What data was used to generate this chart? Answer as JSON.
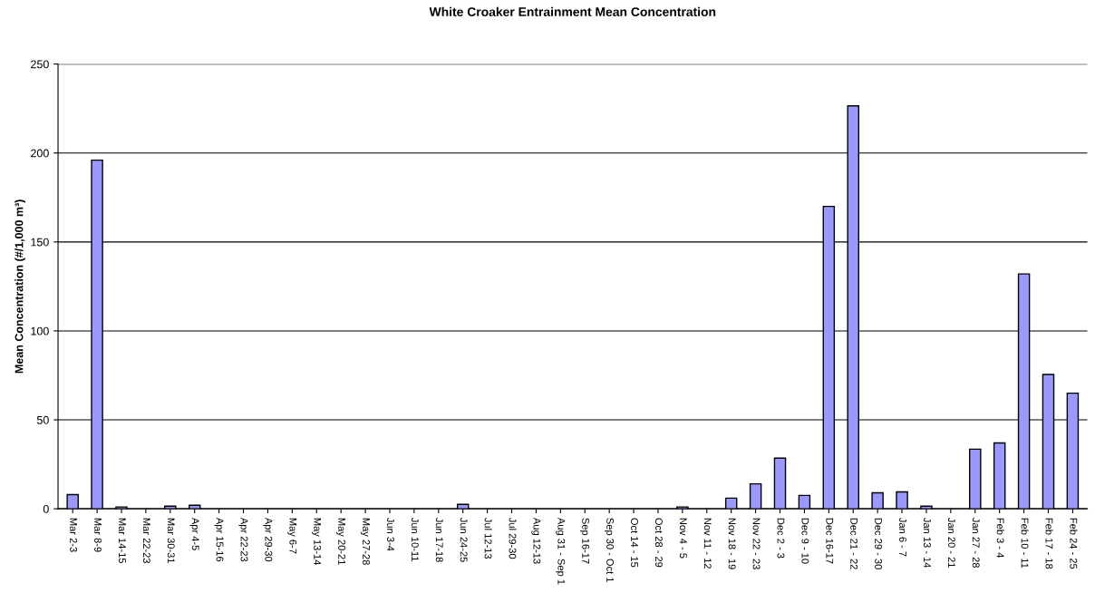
{
  "chart_data": {
    "type": "bar",
    "title": "White Croaker Entrainment Mean Concentration",
    "ylabel": "Mean Concentration (#/1,000 m³)",
    "categories": [
      "Mar 2-3",
      "Mar 8-9",
      "Mar 14-15",
      "Mar 22-23",
      "Mar 30-31",
      "Apr 4-5",
      "Apr 15-16",
      "Apr 22-23",
      "Apr 29-30",
      "May 6-7",
      "May 13-14",
      "May 20-21",
      "May 27-28",
      "Jun 3-4",
      "Jun 10-11",
      "Jun 17-18",
      "Jun 24-25",
      "Jul 12-13",
      "Jul 29-30",
      "Aug 12-13",
      "Aug 31 - Sep 1",
      "Sep 16-17",
      "Sep 30 - Oct 1",
      "Oct 14 - 15",
      "Oct 28 - 29",
      "Nov 4 - 5",
      "Nov 11 - 12",
      "Nov 18 - 19",
      "Nov 22 - 23",
      "Dec 2 - 3",
      "Dec 9 - 10",
      "Dec 16-17",
      "Dec 21 - 22",
      "Dec 29 - 30",
      "Jan 6 - 7",
      "Jan 13 - 14",
      "Jan 20 - 21",
      "Jan 27 - 28",
      "Feb 3 - 4",
      "Feb 10 - 11",
      "Feb 17 - 18",
      "Feb 24 - 25"
    ],
    "values": [
      8,
      196,
      1,
      0,
      1.5,
      2,
      0,
      0,
      0,
      0,
      0,
      0,
      0,
      0,
      0,
      0,
      2.5,
      0,
      0,
      0,
      0,
      0,
      0,
      0,
      0,
      1,
      0,
      6,
      14,
      28.5,
      7.5,
      170,
      226.5,
      9,
      9.5,
      1.5,
      0,
      33.5,
      37,
      132,
      75.5,
      65
    ],
    "color": "#9999ff",
    "ylim": [
      0,
      250
    ],
    "yticks": [
      0,
      50,
      100,
      150,
      200,
      250
    ],
    "grid": "y"
  }
}
